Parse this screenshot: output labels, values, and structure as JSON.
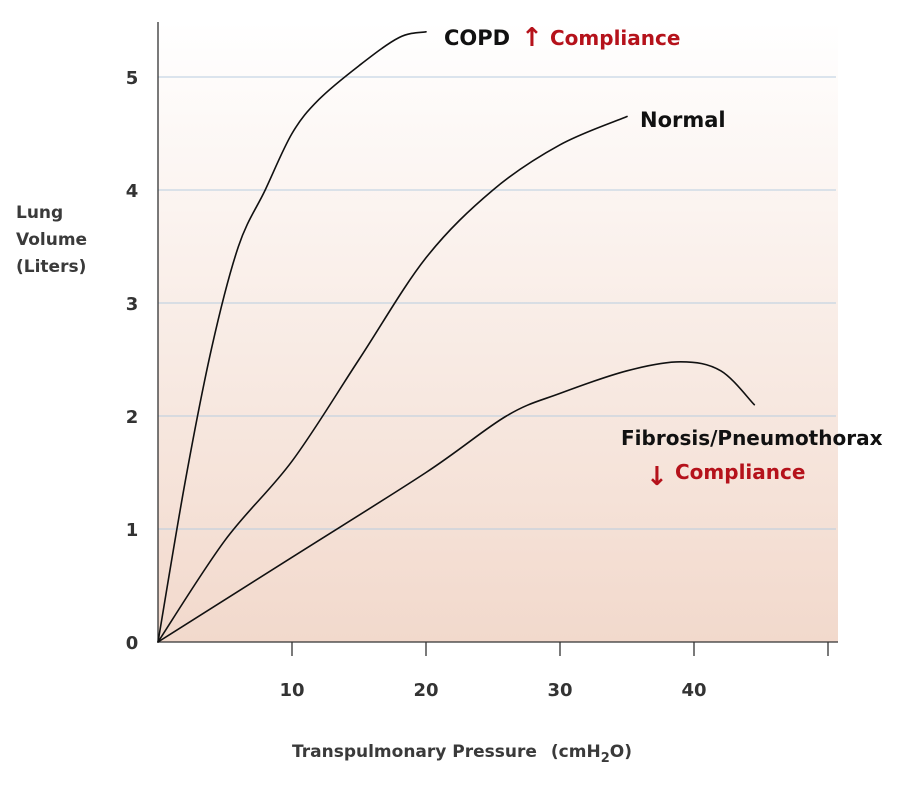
{
  "chart_data": {
    "type": "line",
    "title": "",
    "xlabel": "Transpulmonary Pressure",
    "xlabel_unit_prefix": "(cm",
    "xlabel_unit_h": "H",
    "xlabel_unit_sub": "2",
    "xlabel_unit_suffix": "O)",
    "ylabel_lines": [
      "Lung",
      "Volume",
      "(Liters)"
    ],
    "xlim": [
      0,
      50
    ],
    "ylim": [
      0,
      5.4
    ],
    "x_ticks": [
      10,
      20,
      30,
      40
    ],
    "x_tick_labels": [
      "10",
      "20",
      "30",
      "40"
    ],
    "y_ticks": [
      0,
      1,
      2,
      3,
      4,
      5
    ],
    "y_tick_labels": [
      "0",
      "1",
      "2",
      "3",
      "4",
      "5"
    ],
    "grid": "horizontal",
    "series": [
      {
        "name": "COPD",
        "x": [
          0,
          2,
          4,
          6,
          8,
          10,
          12,
          15,
          18,
          20
        ],
        "y": [
          0,
          1.4,
          2.6,
          3.5,
          4.0,
          4.5,
          4.8,
          5.1,
          5.35,
          5.4
        ]
      },
      {
        "name": "Normal",
        "x": [
          0,
          5,
          10,
          15,
          20,
          25,
          30,
          35
        ],
        "y": [
          0,
          0.9,
          1.6,
          2.5,
          3.4,
          4.0,
          4.4,
          4.65
        ]
      },
      {
        "name": "Fibrosis/Pneumothorax",
        "x": [
          0,
          10,
          20,
          26,
          30,
          35,
          39,
          42,
          44.5
        ],
        "y": [
          0,
          0.75,
          1.5,
          2.0,
          2.2,
          2.4,
          2.48,
          2.4,
          2.1
        ]
      }
    ],
    "annotations": {
      "copd_label": "COPD",
      "copd_arrow": "↑",
      "copd_compliance": "Compliance",
      "normal_label": "Normal",
      "fibrosis_label": "Fibrosis/Pneumothorax",
      "fibrosis_arrow": "↓",
      "fibrosis_compliance": "Compliance"
    },
    "colors": {
      "curve": "#111111",
      "compliance": "#b5121b",
      "grid": "#b8cde0",
      "axis": "#333333",
      "text": "#333333",
      "bg_top": "#ffffff",
      "bg_bottom": "#f2d9cc"
    }
  }
}
